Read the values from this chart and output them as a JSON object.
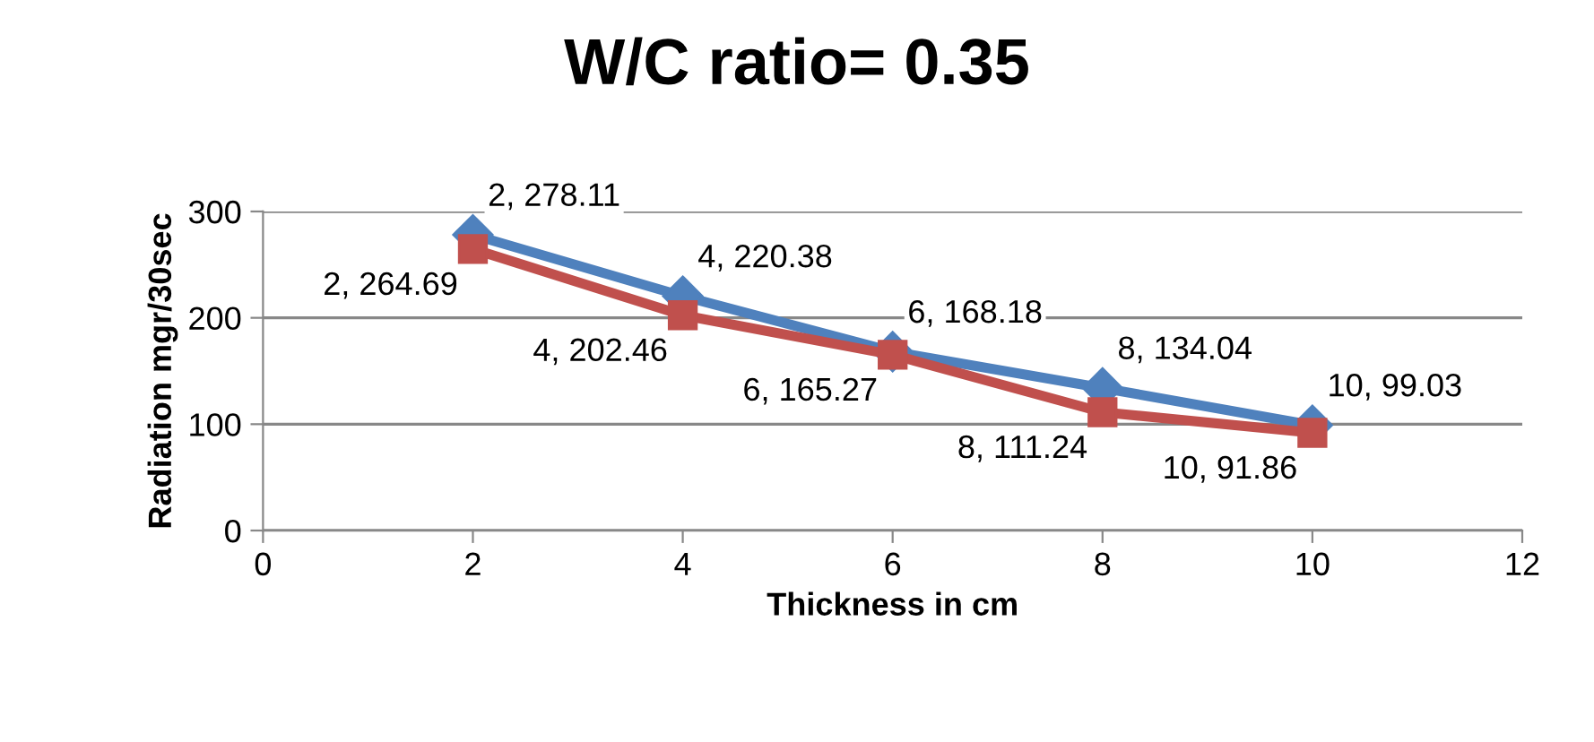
{
  "chart_data": {
    "type": "line",
    "title": "W/C ratio= 0.35",
    "xlabel": "Thickness in cm",
    "ylabel": "Radiation mgr/30sec",
    "x": [
      2,
      4,
      6,
      8,
      10
    ],
    "series": [
      {
        "color": "#4f81bd",
        "marker": "diamond",
        "values": [
          278.11,
          220.38,
          168.18,
          134.04,
          99.03
        ],
        "value_labels": [
          "2, 278.11",
          "4, 220.38",
          "6, 168.18",
          "8, 134.04",
          "10, 99.03"
        ]
      },
      {
        "color": "#c0504d",
        "marker": "square",
        "values": [
          264.69,
          202.46,
          165.27,
          111.24,
          91.86
        ],
        "value_labels": [
          "2, 264.69",
          "4, 202.46",
          "6, 165.27",
          "8, 111.24",
          "10, 91.86"
        ]
      }
    ],
    "xlim": [
      0,
      12
    ],
    "xticks": [
      0,
      2,
      4,
      6,
      8,
      10,
      12
    ],
    "ylim": [
      0,
      300
    ],
    "yticks": [
      0,
      100,
      200,
      300
    ],
    "grid": "y"
  }
}
